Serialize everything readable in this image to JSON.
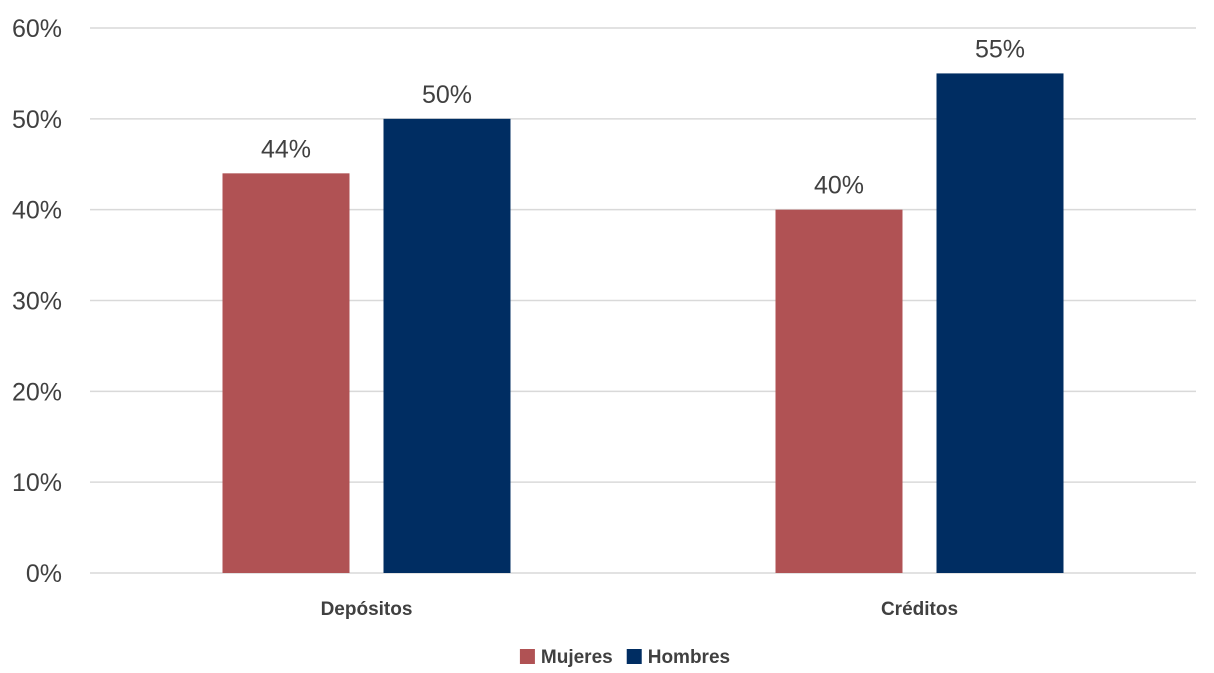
{
  "chart_data": {
    "type": "bar",
    "title": "",
    "xlabel": "",
    "ylabel": "",
    "categories": [
      "Depósitos",
      "Créditos"
    ],
    "series": [
      {
        "name": "Mujeres",
        "values": [
          44,
          40
        ],
        "labels": [
          "44%",
          "40%"
        ],
        "color": "#b05254"
      },
      {
        "name": "Hombres",
        "values": [
          50,
          55
        ],
        "labels": [
          "50%",
          "55%"
        ],
        "color": "#002d62"
      }
    ],
    "ylim": [
      0,
      60
    ],
    "yticks": [
      0,
      10,
      20,
      30,
      40,
      50,
      60
    ],
    "ytick_labels": [
      "0%",
      "10%",
      "20%",
      "30%",
      "40%",
      "50%",
      "60%"
    ],
    "grid": true,
    "legend_position": "bottom"
  }
}
